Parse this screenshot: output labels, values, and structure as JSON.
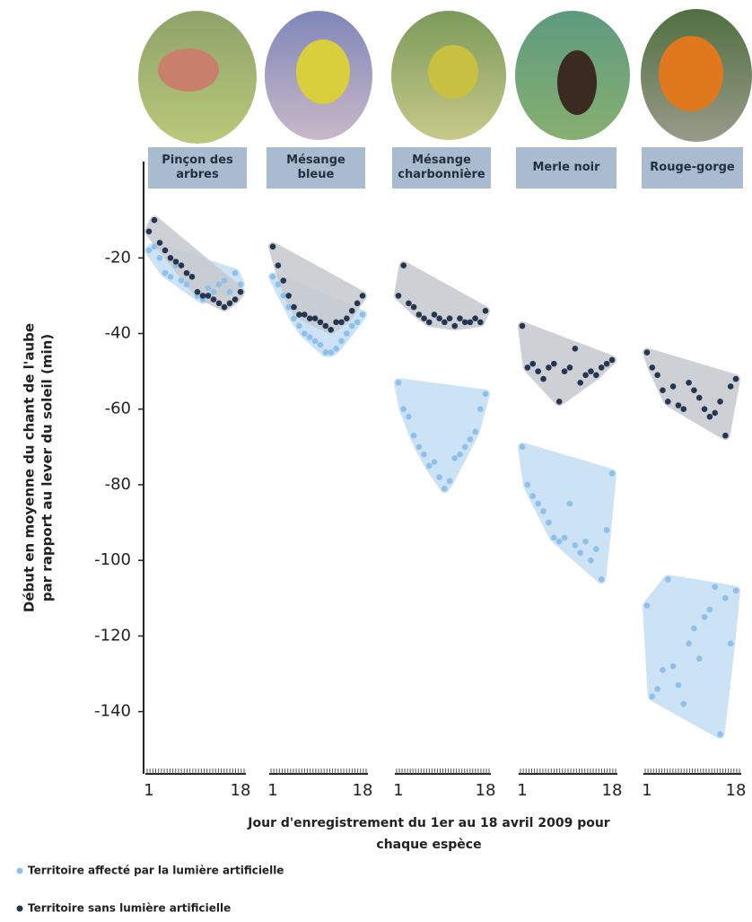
{
  "chart_data": {
    "type": "scatter",
    "y_label": [
      "Début en moyenne du chant de l'aube",
      "par rapport au lever du soleil (min)"
    ],
    "x_label": [
      "Jour d'enregistrement du 1er au 18 avril 2009 pour",
      "chaque espèce"
    ],
    "ylim": [
      -156,
      5
    ],
    "yticks": [
      -20,
      -40,
      -60,
      -80,
      -100,
      -120,
      -140
    ],
    "xlim": [
      1,
      18
    ],
    "xticks": [
      1,
      18
    ],
    "series": [
      {
        "name": "Territoire affecté par la lumière artificielle",
        "color": "#8fc0ea",
        "area": "#c7dff4"
      },
      {
        "name": "Territoire sans lumière artificielle",
        "color": "#263550",
        "area": "#c8cbd0"
      }
    ],
    "panels": [
      {
        "title": "Pinçon des arbres",
        "series": [
          {
            "x": [
              1,
              2,
              3,
              4,
              5,
              6,
              7,
              8,
              9,
              10,
              11,
              12,
              13,
              14,
              15,
              16,
              17,
              18
            ],
            "values": [
              -18,
              -17,
              -20,
              -24,
              -25,
              -22,
              -26,
              -27,
              -25,
              -30,
              -31,
              -28,
              -29,
              -27,
              -26,
              -29,
              -24,
              -27
            ]
          },
          {
            "x": [
              1,
              2,
              3,
              4,
              5,
              6,
              7,
              8,
              9,
              10,
              11,
              12,
              13,
              14,
              15,
              16,
              17,
              18
            ],
            "values": [
              -13,
              -10,
              -16,
              -18,
              -20,
              -21,
              -22,
              -24,
              -25,
              -29,
              -30,
              -30,
              -31,
              -32,
              -33,
              -32,
              -31,
              -29
            ]
          }
        ]
      },
      {
        "title": "Mésange bleue",
        "series": [
          {
            "x": [
              1,
              2,
              3,
              4,
              5,
              6,
              7,
              8,
              9,
              10,
              11,
              12,
              13,
              14,
              15,
              16,
              17,
              18
            ],
            "values": [
              -25,
              -27,
              -30,
              -33,
              -36,
              -38,
              -40,
              -41,
              -42,
              -43,
              -45,
              -45,
              -44,
              -42,
              -40,
              -38,
              -37,
              -35
            ]
          },
          {
            "x": [
              1,
              2,
              3,
              4,
              5,
              6,
              7,
              8,
              9,
              10,
              11,
              12,
              13,
              14,
              15,
              16,
              17,
              18
            ],
            "values": [
              -17,
              -22,
              -26,
              -30,
              -33,
              -35,
              -35,
              -36,
              -36,
              -37,
              -38,
              -39,
              -37,
              -37,
              -36,
              -34,
              -32,
              -30
            ]
          }
        ]
      },
      {
        "title": "Mésange charbonnière",
        "series": [
          {
            "x": [
              1,
              2,
              3,
              4,
              5,
              6,
              7,
              8,
              9,
              10,
              11,
              12,
              13,
              14,
              15,
              16,
              17,
              18
            ],
            "values": [
              -53,
              -60,
              -62,
              -67,
              -70,
              -72,
              -75,
              -74,
              -78,
              -81,
              -79,
              -73,
              -72,
              -70,
              -68,
              -66,
              -60,
              -56
            ]
          },
          {
            "x": [
              1,
              2,
              3,
              4,
              5,
              6,
              7,
              8,
              9,
              10,
              11,
              12,
              13,
              14,
              15,
              16,
              17,
              18
            ],
            "values": [
              -30,
              -22,
              -32,
              -33,
              -35,
              -36,
              -37,
              -35,
              -36,
              -37,
              -36,
              -38,
              -36,
              -37,
              -37,
              -36,
              -37,
              -34
            ]
          }
        ]
      },
      {
        "title": "Merle noir",
        "series": [
          {
            "x": [
              1,
              2,
              3,
              4,
              5,
              6,
              7,
              8,
              9,
              10,
              11,
              12,
              13,
              14,
              15,
              16,
              17,
              18
            ],
            "values": [
              -70,
              -80,
              -83,
              -85,
              -87,
              -90,
              -94,
              -95,
              -94,
              -85,
              -96,
              -98,
              -95,
              -100,
              -97,
              -105,
              -92,
              -77
            ]
          },
          {
            "x": [
              1,
              2,
              3,
              4,
              5,
              6,
              7,
              8,
              9,
              10,
              11,
              12,
              13,
              14,
              15,
              16,
              17,
              18
            ],
            "values": [
              -38,
              -49,
              -48,
              -50,
              -52,
              -49,
              -48,
              -58,
              -50,
              -49,
              -44,
              -53,
              -51,
              -50,
              -51,
              -49,
              -48,
              -47
            ]
          }
        ]
      },
      {
        "title": "Rouge-gorge",
        "series": [
          {
            "x": [
              1,
              2,
              3,
              4,
              5,
              6,
              7,
              8,
              9,
              10,
              11,
              12,
              13,
              14,
              15,
              16,
              17,
              18
            ],
            "values": [
              -112,
              -136,
              -134,
              -129,
              -105,
              -128,
              -133,
              -138,
              -122,
              -118,
              -126,
              -115,
              -113,
              -107,
              -146,
              -110,
              -122,
              -108
            ]
          },
          {
            "x": [
              1,
              2,
              3,
              4,
              5,
              6,
              7,
              8,
              9,
              10,
              11,
              12,
              13,
              14,
              15,
              16,
              17,
              18
            ],
            "values": [
              -45,
              -49,
              -51,
              -55,
              -58,
              -54,
              -59,
              -60,
              -53,
              -55,
              -57,
              -60,
              -62,
              -61,
              -58,
              -67,
              -54,
              -52
            ]
          }
        ]
      }
    ]
  }
}
